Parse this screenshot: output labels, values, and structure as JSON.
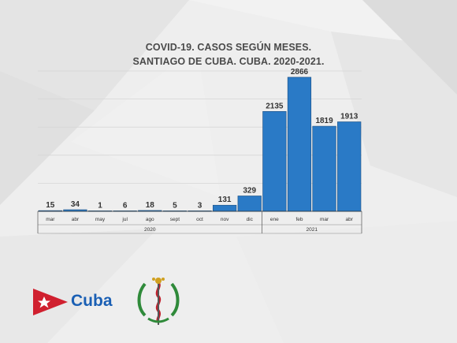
{
  "title_line1": "COVID-19. CASOS SEGÚN MESES.",
  "title_line2": "SANTIAGO DE CUBA. CUBA. 2020-2021.",
  "chart_data": {
    "type": "bar",
    "title": "COVID-19. CASOS SEGÚN MESES. SANTIAGO DE CUBA. CUBA. 2020-2021.",
    "categories": [
      "mar",
      "abr",
      "may",
      "jul",
      "ago",
      "sept",
      "oct",
      "nov",
      "dic",
      "ene",
      "feb",
      "mar",
      "abr"
    ],
    "values": [
      15,
      34,
      1,
      6,
      18,
      5,
      3,
      131,
      329,
      2135,
      2866,
      1819,
      1913
    ],
    "groups": [
      {
        "label": "2020",
        "from": 0,
        "to": 8
      },
      {
        "label": "2021",
        "from": 9,
        "to": 12
      }
    ],
    "ylim": [
      0,
      3000
    ],
    "bar_color": "#2a7ac6",
    "grid": true
  },
  "logos": {
    "cuba_text": "Cuba",
    "flag_colors": {
      "red": "#d0202f",
      "white": "#ffffff"
    },
    "brand_color": "#1a5fb4",
    "emblem_icon": "minsap-emblem-icon"
  }
}
